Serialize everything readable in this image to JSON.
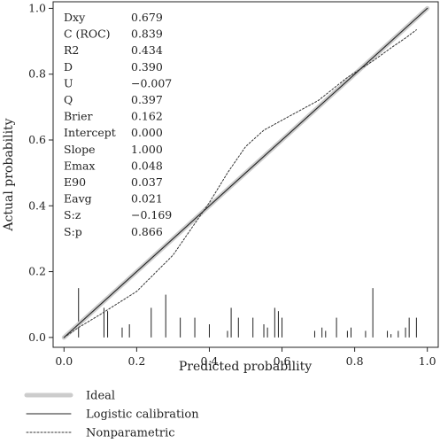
{
  "chart_data": {
    "type": "line",
    "xlabel": "Predicted probability",
    "ylabel": "Actual probability",
    "xlim": [
      -0.03,
      1.03
    ],
    "ylim": [
      -0.03,
      1.02
    ],
    "x_ticks": [
      0.0,
      0.2,
      0.4,
      0.6,
      0.8,
      1.0
    ],
    "x_tick_labels": [
      "0.0",
      "0.2",
      "0.4",
      "0.6",
      "0.8",
      "1.0"
    ],
    "y_ticks": [
      0.0,
      0.2,
      0.4,
      0.6,
      0.8,
      1.0
    ],
    "y_tick_labels": [
      "0.0",
      "0.2",
      "0.4",
      "0.6",
      "0.8",
      "1.0"
    ],
    "grid": false,
    "legend_placement": "bottom-left",
    "colors": {
      "ideal": "#cccccc",
      "logistic": "#222222",
      "nonparametric": "#333333"
    },
    "series": [
      {
        "name": "Ideal",
        "style": "thick-light-gray",
        "x": [
          0,
          1
        ],
        "y": [
          0,
          1
        ]
      },
      {
        "name": "Logistic calibration",
        "style": "solid",
        "x": [
          0,
          1
        ],
        "y": [
          0,
          1
        ]
      },
      {
        "name": "Nonparametric",
        "style": "dotted",
        "x": [
          0.0,
          0.04,
          0.1,
          0.2,
          0.3,
          0.35,
          0.4,
          0.45,
          0.5,
          0.55,
          0.6,
          0.7,
          0.78,
          0.85,
          0.9,
          0.94,
          0.97
        ],
        "y": [
          0.0,
          0.03,
          0.07,
          0.14,
          0.25,
          0.33,
          0.41,
          0.5,
          0.58,
          0.63,
          0.66,
          0.72,
          0.79,
          0.84,
          0.88,
          0.91,
          0.935
        ]
      }
    ],
    "spikes": {
      "x": [
        0.04,
        0.11,
        0.12,
        0.16,
        0.18,
        0.24,
        0.28,
        0.32,
        0.36,
        0.4,
        0.45,
        0.46,
        0.48,
        0.52,
        0.55,
        0.56,
        0.58,
        0.59,
        0.6,
        0.69,
        0.71,
        0.72,
        0.75,
        0.78,
        0.79,
        0.83,
        0.85,
        0.89,
        0.9,
        0.92,
        0.94,
        0.95,
        0.97
      ],
      "y": [
        0.15,
        0.09,
        0.08,
        0.03,
        0.04,
        0.09,
        0.13,
        0.06,
        0.06,
        0.04,
        0.02,
        0.09,
        0.06,
        0.06,
        0.04,
        0.03,
        0.09,
        0.08,
        0.06,
        0.02,
        0.03,
        0.02,
        0.06,
        0.02,
        0.03,
        0.02,
        0.15,
        0.02,
        0.01,
        0.02,
        0.03,
        0.06,
        0.06
      ]
    },
    "stats": [
      {
        "label": "Dxy",
        "value": "0.679"
      },
      {
        "label": "C (ROC)",
        "value": "0.839"
      },
      {
        "label": "R2",
        "value": "0.434"
      },
      {
        "label": "D",
        "value": "0.390"
      },
      {
        "label": "U",
        "value": "−0.007"
      },
      {
        "label": "Q",
        "value": "0.397"
      },
      {
        "label": "Brier",
        "value": "0.162"
      },
      {
        "label": "Intercept",
        "value": "0.000"
      },
      {
        "label": "Slope",
        "value": "1.000"
      },
      {
        "label": "Emax",
        "value": "0.048"
      },
      {
        "label": "E90",
        "value": "0.037"
      },
      {
        "label": "Eavg",
        "value": "0.021"
      },
      {
        "label": "S:z",
        "value": "−0.169"
      },
      {
        "label": "S:p",
        "value": "0.866"
      }
    ],
    "legend": [
      {
        "label": "Ideal",
        "style": "ideal"
      },
      {
        "label": "Logistic calibration",
        "style": "logistic"
      },
      {
        "label": "Nonparametric",
        "style": "nonparametric"
      }
    ]
  }
}
